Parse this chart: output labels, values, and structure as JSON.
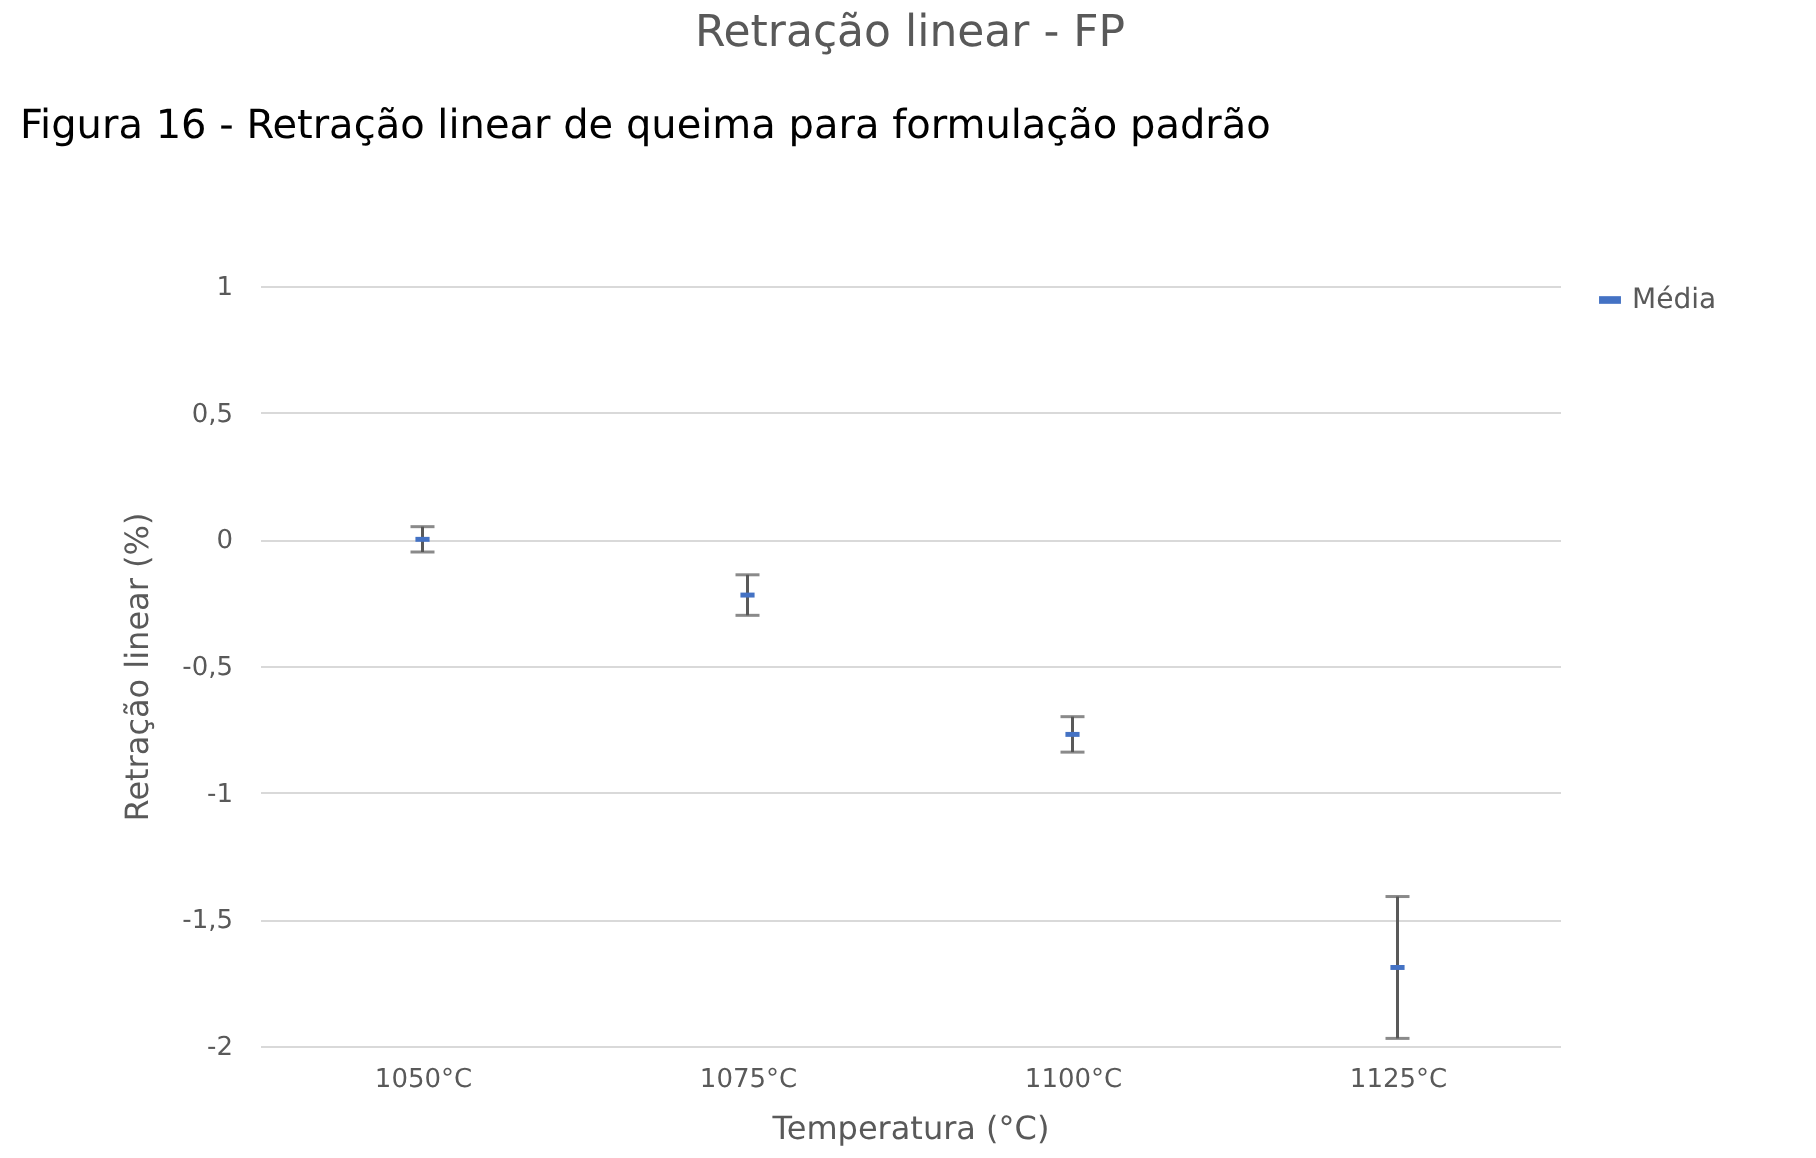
{
  "chart_data": {
    "type": "scatter",
    "title": "Retração linear  - FP",
    "xlabel": "Temperatura (°C)",
    "ylabel": "Retração linear (%)",
    "annotations": [
      "Figura 16 - Retração linear de queima para formulação padrão"
    ],
    "categories": [
      "1050°C",
      "1075°C",
      "1100°C",
      "1125°C"
    ],
    "series": [
      {
        "name": "Média",
        "color": "#4472c4",
        "values": [
          0,
          -0.22,
          -0.77,
          -1.69
        ],
        "errors": [
          0.05,
          0.08,
          0.07,
          0.28
        ]
      }
    ],
    "ylim": [
      -2,
      1
    ],
    "yticks": [
      {
        "value": -2,
        "label": "-2"
      },
      {
        "value": -1.5,
        "label": "-1,5"
      },
      {
        "value": -1,
        "label": "-1"
      },
      {
        "value": -0.5,
        "label": "-0,5"
      },
      {
        "value": 0,
        "label": "0"
      },
      {
        "value": 0.5,
        "label": "0,5"
      },
      {
        "value": 1,
        "label": "1"
      }
    ],
    "grid": "y",
    "legend": "right"
  }
}
